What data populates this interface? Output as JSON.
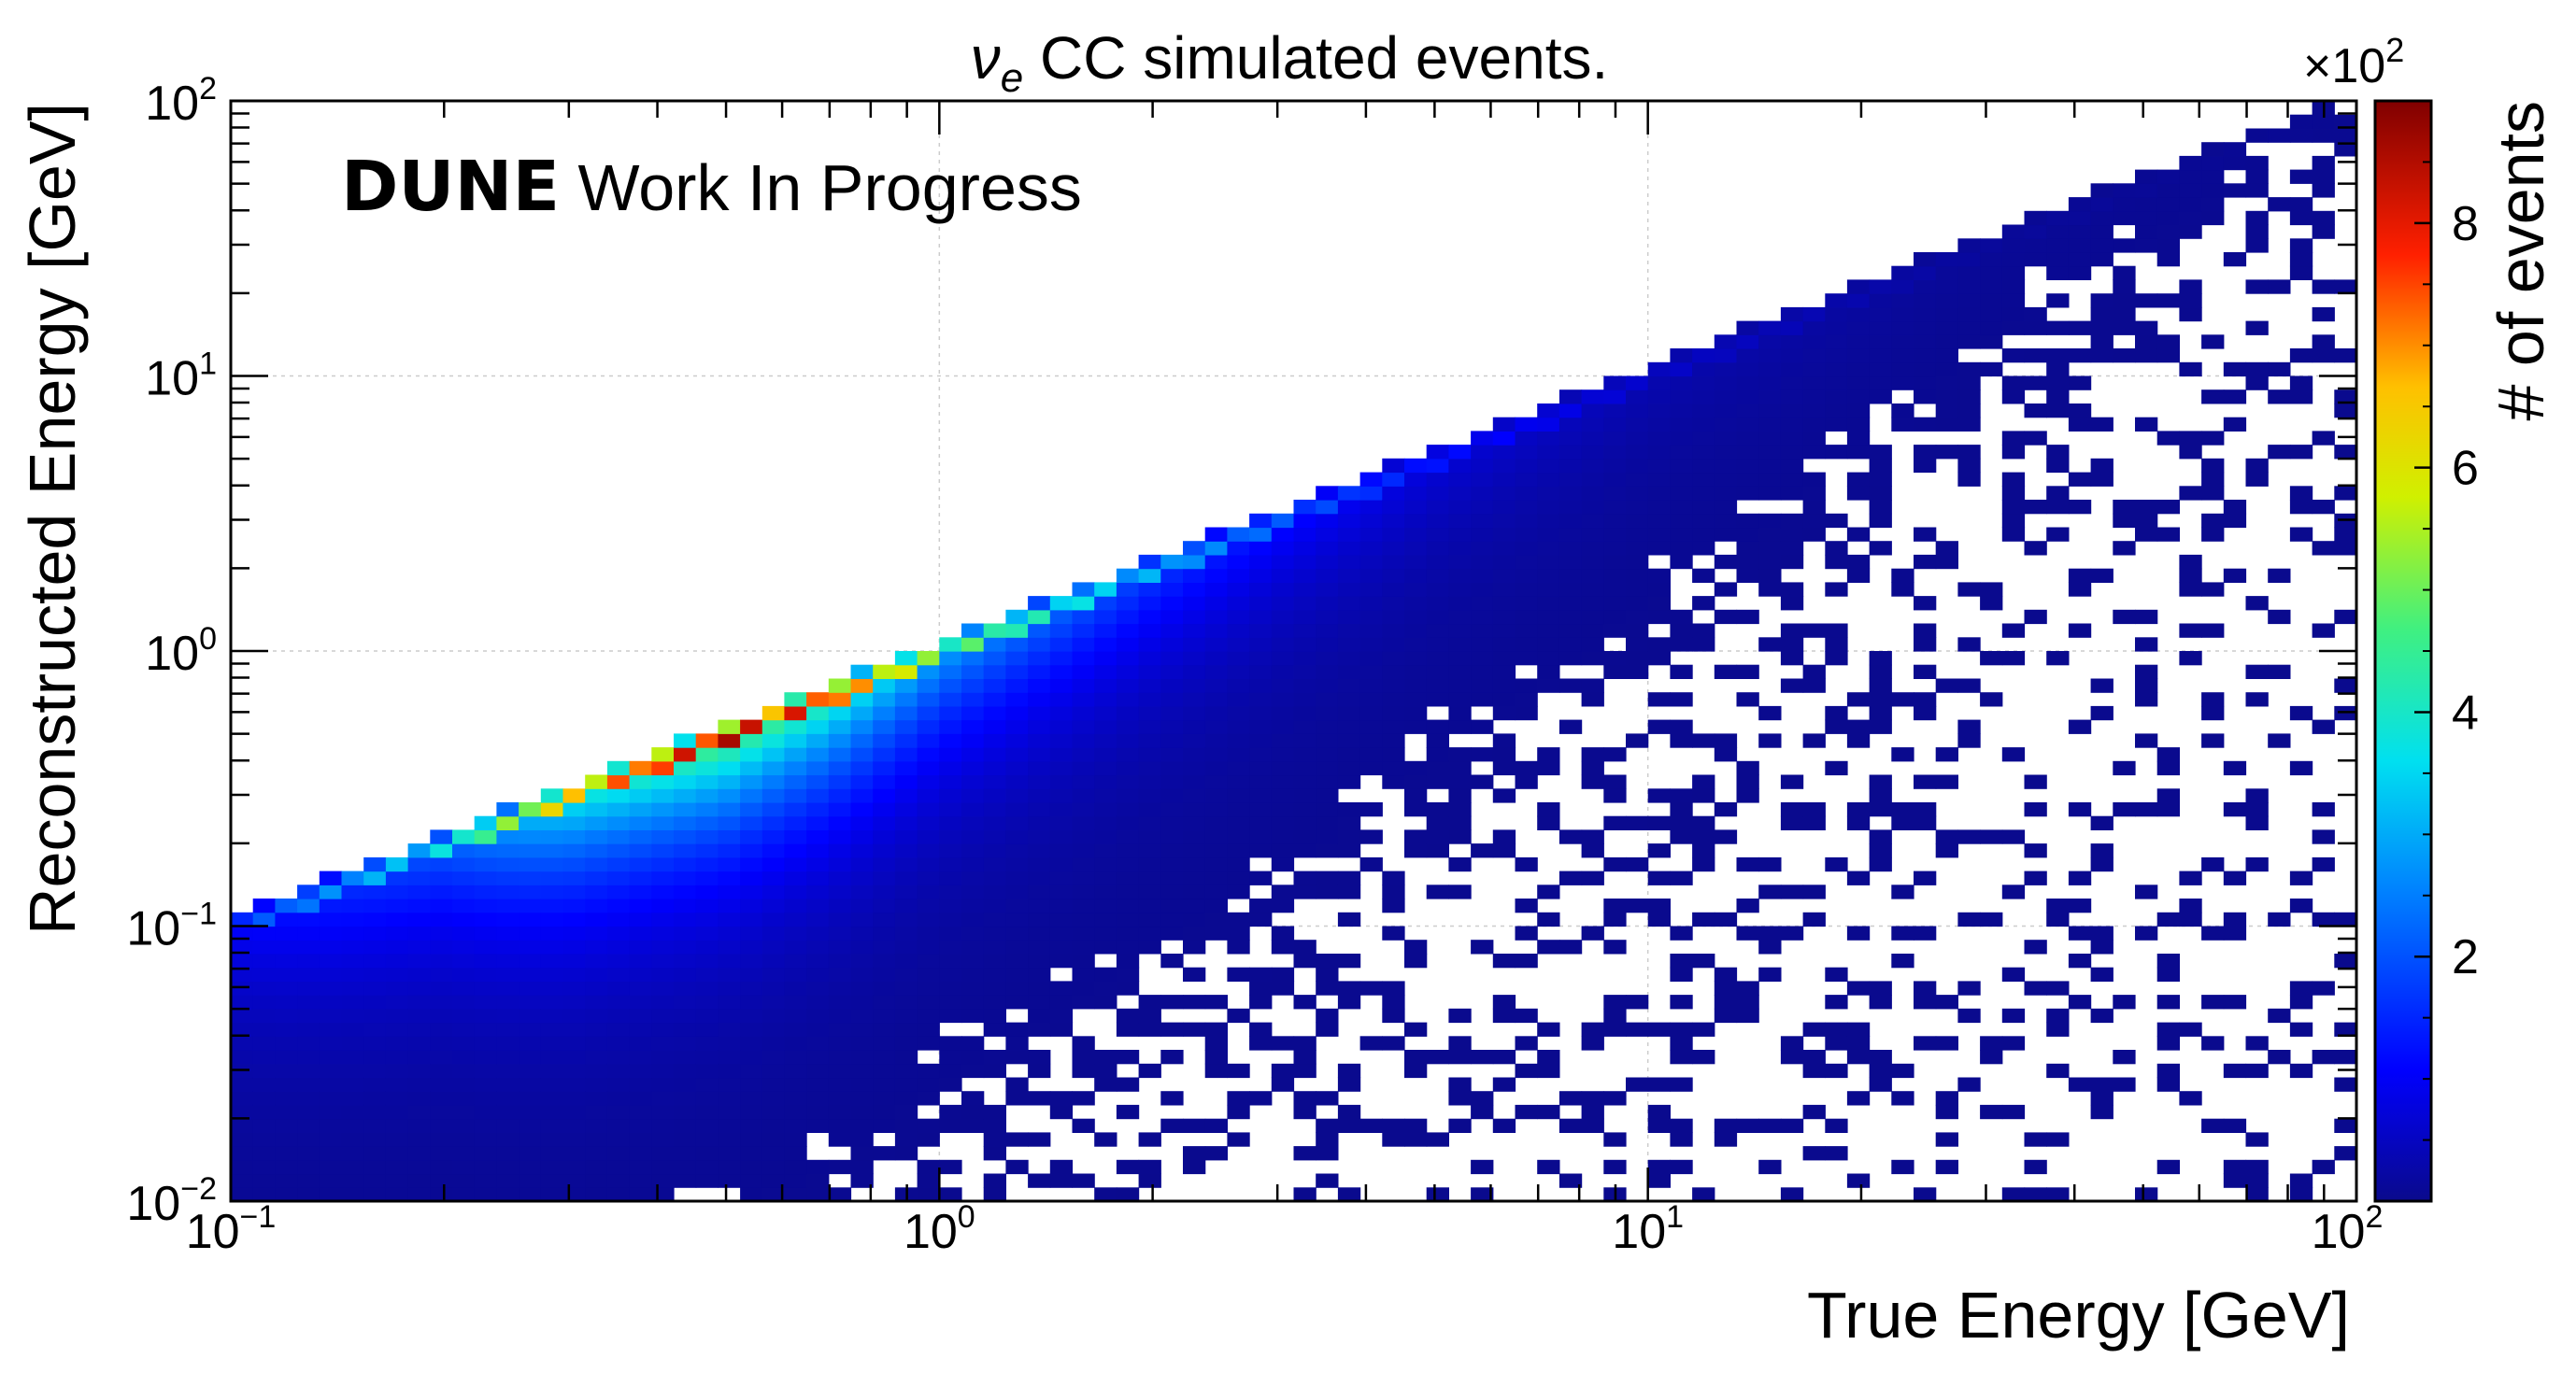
{
  "chart_data": {
    "type": "heatmap",
    "title": "ν_e CC simulated events.",
    "title_parts": {
      "nu": "ν",
      "subscript": "e",
      "rest": " CC simulated events."
    },
    "annotation": {
      "bold": "DUNE",
      "rest": " Work In Progress"
    },
    "xlabel": "True Energy [GeV]",
    "ylabel": "Reconstructed Energy [GeV]",
    "zlabel": "# of events",
    "x_scale": "log",
    "y_scale": "log",
    "xlim": [
      0.1,
      100
    ],
    "ylim": [
      0.01,
      100
    ],
    "zlim": [
      0,
      900
    ],
    "z_multiplier_label": {
      "base": "×10",
      "exp": "2"
    },
    "x_ticks": [
      {
        "value": 0.1,
        "base": "10",
        "exp": "−1"
      },
      {
        "value": 1,
        "base": "10",
        "exp": "0"
      },
      {
        "value": 10,
        "base": "10",
        "exp": "1"
      },
      {
        "value": 100,
        "base": "10",
        "exp": "2"
      }
    ],
    "y_ticks": [
      {
        "value": 0.01,
        "base": "10",
        "exp": "−2"
      },
      {
        "value": 0.1,
        "base": "10",
        "exp": "−1"
      },
      {
        "value": 1,
        "base": "10",
        "exp": "0"
      },
      {
        "value": 10,
        "base": "10",
        "exp": "1"
      },
      {
        "value": 100,
        "base": "10",
        "exp": "2"
      }
    ],
    "z_ticks": [
      "2",
      "4",
      "6",
      "8"
    ],
    "z_tick_values": [
      200,
      400,
      600,
      800
    ],
    "grid": true,
    "colormap": "rainbow (blue → cyan → green → yellow → red → dark red)",
    "bins": {
      "nx": 96,
      "ny": 80
    },
    "ridge": {
      "description": "Events concentrated along Reco ≈ True, broad low-energy tail below diagonal",
      "peak_x": [
        0.1,
        0.2,
        0.3,
        0.5,
        0.7,
        1,
        2,
        3,
        5,
        10,
        30,
        100
      ],
      "peak_counts": [
        180,
        380,
        680,
        880,
        780,
        520,
        310,
        220,
        130,
        60,
        15,
        5
      ]
    },
    "colors": {
      "background": "#ffffff",
      "frame": "#000000",
      "grid": "#cccccc",
      "low": "#0a0a8c",
      "high": "#800000"
    }
  }
}
